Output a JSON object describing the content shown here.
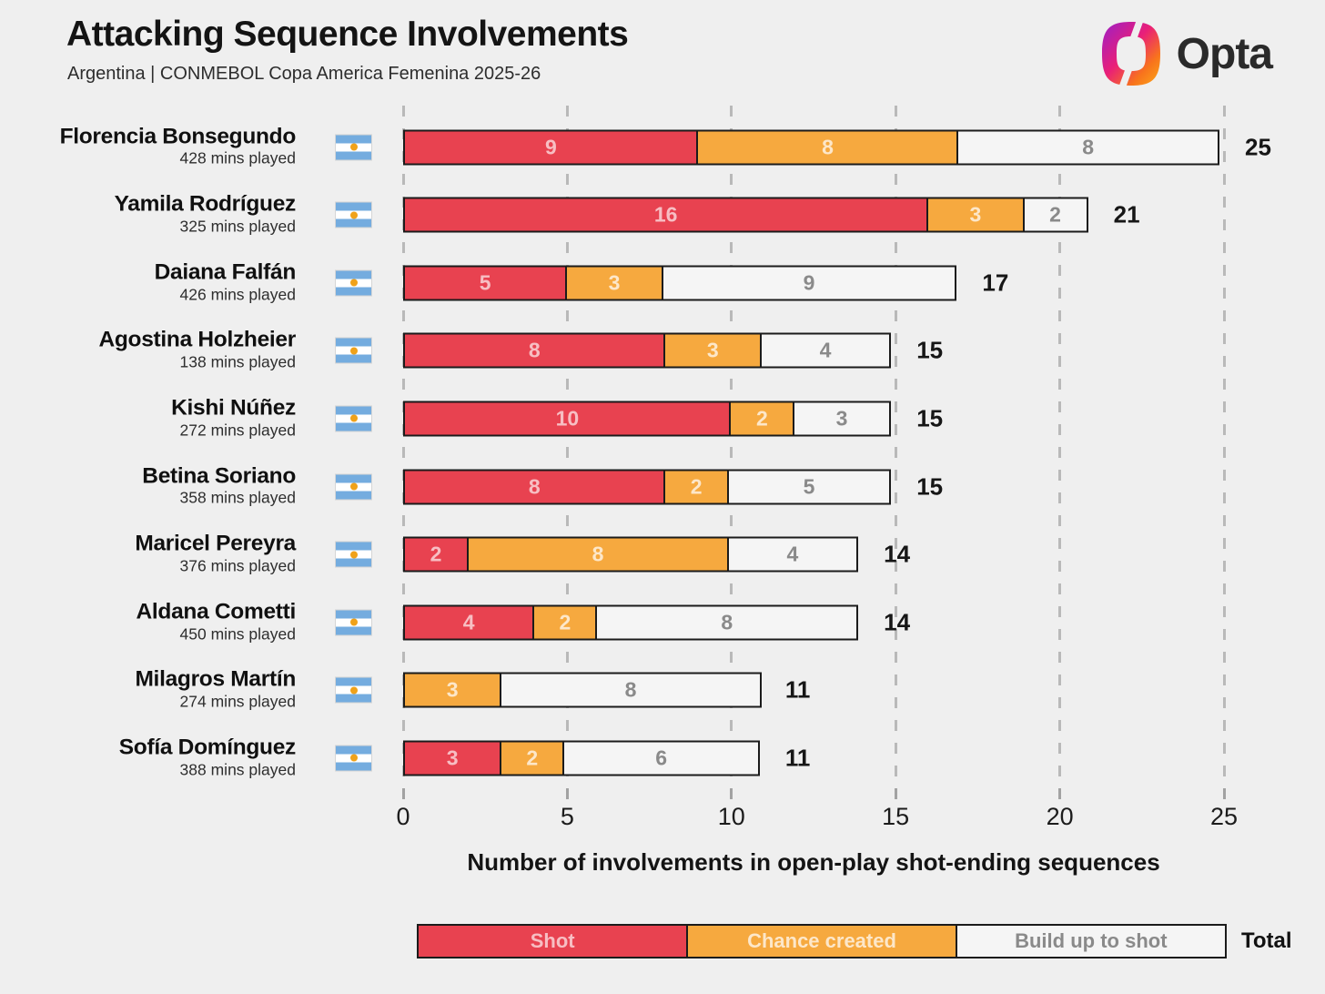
{
  "header": {
    "title": "Attacking Sequence Involvements",
    "subtitle": "Argentina | CONMEBOL Copa America Femenina 2025-26",
    "brand": "Opta"
  },
  "chart_data": {
    "type": "bar",
    "orientation": "horizontal",
    "stacked": true,
    "title": "Attacking Sequence Involvements",
    "subtitle": "Argentina | CONMEBOL Copa America Femenina 2025-26",
    "xlabel": "Number of involvements in open-play shot-ending sequences",
    "xlim": [
      0,
      25
    ],
    "x_ticks": [
      0,
      5,
      10,
      15,
      20,
      25
    ],
    "grid": "dashed-vertical",
    "legend_position": "bottom",
    "series_names": [
      "Shot",
      "Chance created",
      "Build up to shot"
    ],
    "players": [
      {
        "name": "Florencia Bonsegundo",
        "mins": "428 mins played",
        "shot": 9,
        "chance_created": 8,
        "build_up_to_shot": 8,
        "total": 25
      },
      {
        "name": "Yamila Rodríguez",
        "mins": "325 mins played",
        "shot": 16,
        "chance_created": 3,
        "build_up_to_shot": 2,
        "total": 21
      },
      {
        "name": "Daiana Falfán",
        "mins": "426 mins played",
        "shot": 5,
        "chance_created": 3,
        "build_up_to_shot": 9,
        "total": 17
      },
      {
        "name": "Agostina Holzheier",
        "mins": "138 mins played",
        "shot": 8,
        "chance_created": 3,
        "build_up_to_shot": 4,
        "total": 15
      },
      {
        "name": "Kishi Núñez",
        "mins": "272 mins played",
        "shot": 10,
        "chance_created": 2,
        "build_up_to_shot": 3,
        "total": 15
      },
      {
        "name": "Betina Soriano",
        "mins": "358 mins played",
        "shot": 8,
        "chance_created": 2,
        "build_up_to_shot": 5,
        "total": 15
      },
      {
        "name": "Maricel Pereyra",
        "mins": "376 mins played",
        "shot": 2,
        "chance_created": 8,
        "build_up_to_shot": 4,
        "total": 14
      },
      {
        "name": "Aldana Cometti",
        "mins": "450 mins played",
        "shot": 4,
        "chance_created": 2,
        "build_up_to_shot": 8,
        "total": 14
      },
      {
        "name": "Milagros Martín",
        "mins": "274 mins played",
        "shot": 0,
        "chance_created": 3,
        "build_up_to_shot": 8,
        "total": 11
      },
      {
        "name": "Sofía Domínguez",
        "mins": "388 mins played",
        "shot": 3,
        "chance_created": 2,
        "build_up_to_shot": 6,
        "total": 11
      }
    ],
    "colors": {
      "shot": "#E84250",
      "chance_created": "#F6A93F",
      "build_up_to_shot": "#F5F5F5",
      "bar_border": "#1B1B1B",
      "background": "#EFEFEF",
      "flag_blue": "#74ACDF",
      "flag_sun": "#F0A21A"
    }
  },
  "legend": {
    "items": [
      {
        "label": "Shot"
      },
      {
        "label": "Chance created"
      },
      {
        "label": "Build up to shot"
      }
    ],
    "total_label": "Total"
  }
}
